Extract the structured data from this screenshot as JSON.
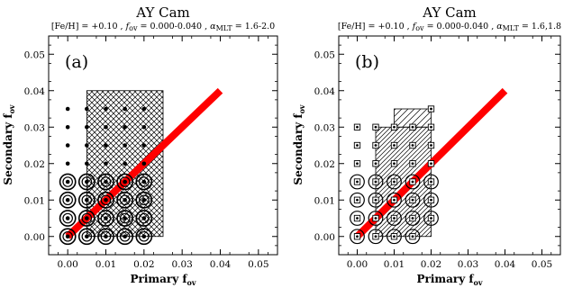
{
  "chart_data": [
    {
      "type": "scatter",
      "panel_label": "(a)",
      "title": "AY Cam",
      "subtitle": {
        "feh_label": "[Fe/H] = +0.10",
        "fov_name": "f",
        "fov_sub": "ov",
        "fov_range": " = 0.000-0.040",
        "alpha_name": "α",
        "alpha_sub": "MLT",
        "alpha_range": " = 1.6-2.0",
        "sep": " , "
      },
      "xlabel": {
        "main": "Primary f",
        "sub": "ov"
      },
      "ylabel": {
        "main": "Secondary f",
        "sub": "ov"
      },
      "xlim": [
        -0.005,
        0.055
      ],
      "ylim": [
        -0.005,
        0.055
      ],
      "xticks": [
        "0.00",
        "0.01",
        "0.02",
        "0.03",
        "0.04",
        "0.05"
      ],
      "yticks": [
        "0.00",
        "0.01",
        "0.02",
        "0.03",
        "0.04",
        "0.05"
      ],
      "regions": [
        {
          "pattern": "crosshatch",
          "x": [
            0.005,
            0.025
          ],
          "y": [
            0.0,
            0.04
          ]
        }
      ],
      "equality_line": {
        "x": [
          0.0,
          0.04
        ],
        "y": [
          0.0,
          0.04
        ],
        "color": "#ff0000"
      },
      "marker_set": "a",
      "models": [
        {
          "x": 0.0,
          "y": 0.0,
          "d": 1
        },
        {
          "x": 0.0,
          "y": 0.005,
          "d": 1
        },
        {
          "x": 0.0,
          "y": 0.01,
          "d": 1
        },
        {
          "x": 0.0,
          "y": 0.015,
          "d": 1
        },
        {
          "x": 0.0,
          "y": 0.02,
          "d": 0
        },
        {
          "x": 0.0,
          "y": 0.025,
          "d": 0
        },
        {
          "x": 0.0,
          "y": 0.03,
          "d": 0
        },
        {
          "x": 0.0,
          "y": 0.035,
          "d": 0
        },
        {
          "x": 0.005,
          "y": 0.0,
          "d": 1
        },
        {
          "x": 0.005,
          "y": 0.005,
          "d": 1
        },
        {
          "x": 0.005,
          "y": 0.01,
          "d": 1
        },
        {
          "x": 0.005,
          "y": 0.015,
          "d": 1
        },
        {
          "x": 0.005,
          "y": 0.02,
          "d": 0
        },
        {
          "x": 0.005,
          "y": 0.025,
          "d": 0
        },
        {
          "x": 0.005,
          "y": 0.03,
          "d": 0
        },
        {
          "x": 0.005,
          "y": 0.035,
          "d": 0
        },
        {
          "x": 0.01,
          "y": 0.0,
          "d": 1
        },
        {
          "x": 0.01,
          "y": 0.005,
          "d": 1
        },
        {
          "x": 0.01,
          "y": 0.01,
          "d": 1
        },
        {
          "x": 0.01,
          "y": 0.015,
          "d": 1
        },
        {
          "x": 0.01,
          "y": 0.02,
          "d": 0
        },
        {
          "x": 0.01,
          "y": 0.025,
          "d": 0
        },
        {
          "x": 0.01,
          "y": 0.03,
          "d": 0
        },
        {
          "x": 0.01,
          "y": 0.035,
          "d": 0
        },
        {
          "x": 0.015,
          "y": 0.0,
          "d": 1
        },
        {
          "x": 0.015,
          "y": 0.005,
          "d": 1
        },
        {
          "x": 0.015,
          "y": 0.01,
          "d": 1
        },
        {
          "x": 0.015,
          "y": 0.015,
          "d": 1
        },
        {
          "x": 0.015,
          "y": 0.02,
          "d": 0
        },
        {
          "x": 0.015,
          "y": 0.025,
          "d": 0
        },
        {
          "x": 0.015,
          "y": 0.03,
          "d": 0
        },
        {
          "x": 0.015,
          "y": 0.035,
          "d": 0
        },
        {
          "x": 0.02,
          "y": 0.0,
          "d": 1
        },
        {
          "x": 0.02,
          "y": 0.005,
          "d": 1
        },
        {
          "x": 0.02,
          "y": 0.01,
          "d": 1
        },
        {
          "x": 0.02,
          "y": 0.015,
          "d": 1
        },
        {
          "x": 0.02,
          "y": 0.02,
          "d": 0
        },
        {
          "x": 0.02,
          "y": 0.025,
          "d": 0
        },
        {
          "x": 0.02,
          "y": 0.03,
          "d": 0
        },
        {
          "x": 0.02,
          "y": 0.035,
          "d": 0
        }
      ]
    },
    {
      "type": "scatter",
      "panel_label": "(b)",
      "title": "AY Cam",
      "subtitle": {
        "feh_label": "[Fe/H] = +0.10",
        "fov_name": "f",
        "fov_sub": "ov",
        "fov_range": " = 0.000-0.040",
        "alpha_name": "α",
        "alpha_sub": "MLT",
        "alpha_range": " = 1.6,1.8",
        "sep": " , "
      },
      "xlabel": {
        "main": "Primary f",
        "sub": "ov"
      },
      "ylabel": {
        "main": "Secondary f",
        "sub": "ov"
      },
      "xlim": [
        -0.005,
        0.055
      ],
      "ylim": [
        -0.005,
        0.055
      ],
      "xticks": [
        "0.00",
        "0.01",
        "0.02",
        "0.03",
        "0.04",
        "0.05"
      ],
      "yticks": [
        "0.00",
        "0.01",
        "0.02",
        "0.03",
        "0.04",
        "0.05"
      ],
      "regions": [
        {
          "pattern": "hatch-dense",
          "x": [
            0.005,
            0.02
          ],
          "y": [
            0.0,
            0.03
          ]
        },
        {
          "pattern": "hatch-sparse",
          "x": [
            0.01,
            0.02
          ],
          "y": [
            0.03,
            0.035
          ]
        }
      ],
      "equality_line": {
        "x": [
          0.0,
          0.04
        ],
        "y": [
          0.0,
          0.04
        ],
        "color": "#ff0000"
      },
      "marker_set": "b",
      "models": [
        {
          "x": 0.0,
          "y": 0.0,
          "d": 1
        },
        {
          "x": 0.0,
          "y": 0.005,
          "d": 1
        },
        {
          "x": 0.0,
          "y": 0.01,
          "d": 1
        },
        {
          "x": 0.0,
          "y": 0.015,
          "d": 1
        },
        {
          "x": 0.0,
          "y": 0.02,
          "d": 0
        },
        {
          "x": 0.0,
          "y": 0.025,
          "d": 0
        },
        {
          "x": 0.0,
          "y": 0.03,
          "d": 0
        },
        {
          "x": 0.005,
          "y": 0.0,
          "d": 1
        },
        {
          "x": 0.005,
          "y": 0.005,
          "d": 1
        },
        {
          "x": 0.005,
          "y": 0.01,
          "d": 1
        },
        {
          "x": 0.005,
          "y": 0.015,
          "d": 1
        },
        {
          "x": 0.005,
          "y": 0.02,
          "d": 0
        },
        {
          "x": 0.005,
          "y": 0.025,
          "d": 0
        },
        {
          "x": 0.005,
          "y": 0.03,
          "d": 0
        },
        {
          "x": 0.01,
          "y": 0.0,
          "d": 1
        },
        {
          "x": 0.01,
          "y": 0.005,
          "d": 1
        },
        {
          "x": 0.01,
          "y": 0.01,
          "d": 1
        },
        {
          "x": 0.01,
          "y": 0.015,
          "d": 1
        },
        {
          "x": 0.01,
          "y": 0.02,
          "d": 0
        },
        {
          "x": 0.01,
          "y": 0.025,
          "d": 0
        },
        {
          "x": 0.01,
          "y": 0.03,
          "d": 0
        },
        {
          "x": 0.015,
          "y": 0.0,
          "d": 1
        },
        {
          "x": 0.015,
          "y": 0.005,
          "d": 1
        },
        {
          "x": 0.015,
          "y": 0.01,
          "d": 1
        },
        {
          "x": 0.015,
          "y": 0.015,
          "d": 1
        },
        {
          "x": 0.015,
          "y": 0.02,
          "d": 0
        },
        {
          "x": 0.015,
          "y": 0.025,
          "d": 0
        },
        {
          "x": 0.015,
          "y": 0.03,
          "d": 0
        },
        {
          "x": 0.02,
          "y": 0.005,
          "d": 1
        },
        {
          "x": 0.02,
          "y": 0.01,
          "d": 1
        },
        {
          "x": 0.02,
          "y": 0.015,
          "d": 1
        },
        {
          "x": 0.02,
          "y": 0.02,
          "d": 0
        },
        {
          "x": 0.02,
          "y": 0.025,
          "d": 0
        },
        {
          "x": 0.02,
          "y": 0.03,
          "d": 0
        },
        {
          "x": 0.02,
          "y": 0.035,
          "d": 0
        }
      ]
    }
  ]
}
